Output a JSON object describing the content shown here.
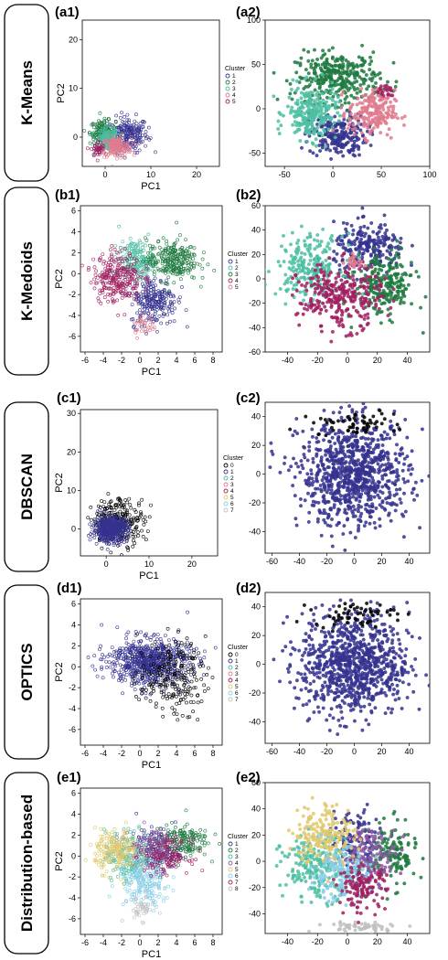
{
  "colors": {
    "navy": "#35338f",
    "green": "#1e7a40",
    "teal": "#4dbfa3",
    "pink": "#e07b8e",
    "maroon": "#a11f5f",
    "skyblue": "#87cde8",
    "yellow": "#e0c86b",
    "black": "#000000",
    "gray": "#c0c0c0",
    "purple": "#8a56a3"
  },
  "rows": [
    {
      "method": "K-Means",
      "left": {
        "label": "(a1)",
        "xlabel": "PC1",
        "ylabel": "PC2",
        "xticks": [
          0,
          10,
          20
        ],
        "yticks": [
          0,
          10,
          20
        ],
        "xlim": [
          -5,
          25
        ],
        "ylim": [
          -6,
          24
        ],
        "legend_title": "Cluster",
        "legend": [
          "1",
          "2",
          "3",
          "4",
          "5"
        ]
      },
      "right": {
        "label": "(a2)",
        "xticks": [
          -50,
          0,
          50,
          100
        ],
        "yticks": [
          -50,
          0,
          50,
          100
        ],
        "xlim": [
          -70,
          100
        ],
        "ylim": [
          -65,
          100
        ]
      }
    },
    {
      "method": "K-Medoids",
      "left": {
        "label": "(b1)",
        "xlabel": "PC1",
        "ylabel": "PC2",
        "xticks": [
          -6,
          -4,
          -2,
          0,
          2,
          4,
          6,
          8
        ],
        "yticks": [
          -6,
          -4,
          -2,
          0,
          2,
          4,
          6
        ],
        "xlim": [
          -6.5,
          9
        ],
        "ylim": [
          -7.5,
          6.5
        ],
        "legend_title": "Cluster",
        "legend": [
          "1",
          "2",
          "3",
          "4",
          "5"
        ]
      },
      "right": {
        "label": "(b2)",
        "xticks": [
          -40,
          -20,
          0,
          20,
          40
        ],
        "yticks": [
          -60,
          -40,
          -20,
          0,
          20,
          40,
          60
        ],
        "xlim": [
          -55,
          55
        ],
        "ylim": [
          -60,
          60
        ]
      }
    },
    {
      "method": "DBSCAN",
      "left": {
        "label": "(c1)",
        "xlabel": "PC1",
        "ylabel": "PC2",
        "xticks": [
          0,
          10,
          20
        ],
        "yticks": [
          0,
          10,
          20,
          30
        ],
        "xlim": [
          -6,
          26
        ],
        "ylim": [
          -7,
          31
        ],
        "legend_title": "Cluster",
        "legend": [
          "0",
          "1",
          "2",
          "3",
          "4",
          "5",
          "6",
          "7"
        ]
      },
      "right": {
        "label": "(c2)",
        "xticks": [
          -60,
          -40,
          -20,
          0,
          20,
          40
        ],
        "yticks": [
          -40,
          -20,
          0,
          20,
          40
        ],
        "xlim": [
          -65,
          55
        ],
        "ylim": [
          -55,
          50
        ]
      }
    },
    {
      "method": "OPTICS",
      "left": {
        "label": "(d1)",
        "xlabel": "PC1",
        "ylabel": "PC2",
        "xticks": [
          -6,
          -4,
          -2,
          0,
          2,
          4,
          6,
          8
        ],
        "yticks": [
          -6,
          -4,
          -2,
          0,
          2,
          4,
          6
        ],
        "xlim": [
          -6.5,
          9
        ],
        "ylim": [
          -7.5,
          6.5
        ],
        "legend_title": "Cluster",
        "legend": [
          "0",
          "1",
          "2",
          "3",
          "4",
          "5",
          "6",
          "7"
        ]
      },
      "right": {
        "label": "(d2)",
        "xticks": [
          -60,
          -40,
          -20,
          0,
          20,
          40
        ],
        "yticks": [
          -40,
          -20,
          0,
          20,
          40
        ],
        "xlim": [
          -65,
          55
        ],
        "ylim": [
          -55,
          50
        ]
      }
    },
    {
      "method": "Distribution-based",
      "left": {
        "label": "(e1)",
        "xlabel": "PC1",
        "ylabel": "PC2",
        "xticks": [
          -6,
          -4,
          -2,
          0,
          2,
          4,
          6,
          8
        ],
        "yticks": [
          -6,
          -4,
          -2,
          0,
          2,
          4,
          6
        ],
        "xlim": [
          -6.5,
          9
        ],
        "ylim": [
          -7.5,
          6.5
        ],
        "legend_title": "Cluster",
        "legend": [
          "1",
          "2",
          "3",
          "4",
          "5",
          "6",
          "7",
          "8"
        ]
      },
      "right": {
        "label": "(e2)",
        "xticks": [
          -40,
          -20,
          0,
          20,
          40
        ],
        "yticks": [
          -40,
          -20,
          0,
          20,
          40,
          60
        ],
        "xlim": [
          -55,
          55
        ],
        "ylim": [
          -55,
          60
        ]
      }
    }
  ],
  "chart_data": [
    {
      "type": "scatter",
      "id": "a1",
      "xlabel": "PC1",
      "ylabel": "PC2",
      "xlim": [
        -5,
        25
      ],
      "ylim": [
        -6,
        24
      ],
      "legend": [
        "1",
        "2",
        "3",
        "4",
        "5"
      ],
      "legend_title": "Cluster",
      "series": [
        {
          "name": "1",
          "color": "navy",
          "cx": 5,
          "cy": 0.5,
          "sx": 2.2,
          "sy": 1.8,
          "n": 220
        },
        {
          "name": "2",
          "color": "green",
          "cx": -0.5,
          "cy": 1,
          "sx": 1.4,
          "sy": 1.2,
          "n": 150
        },
        {
          "name": "3",
          "color": "teal",
          "cx": 0.5,
          "cy": -0.5,
          "sx": 1.2,
          "sy": 1.2,
          "n": 120
        },
        {
          "name": "4",
          "color": "pink",
          "cx": 2.5,
          "cy": -2,
          "sx": 1.6,
          "sy": 1,
          "n": 160
        },
        {
          "name": "5",
          "color": "maroon",
          "cx": -1.5,
          "cy": -2.5,
          "sx": 0.8,
          "sy": 0.8,
          "n": 40
        }
      ]
    },
    {
      "type": "scatter",
      "id": "a2",
      "xlim": [
        -70,
        100
      ],
      "ylim": [
        -65,
        100
      ],
      "series": [
        {
          "name": "1",
          "color": "navy",
          "cx": 5,
          "cy": -30,
          "sx": 15,
          "sy": 12,
          "n": 220
        },
        {
          "name": "2",
          "color": "green",
          "cx": 5,
          "cy": 35,
          "sx": 22,
          "sy": 14,
          "n": 330
        },
        {
          "name": "3",
          "color": "teal",
          "cx": -22,
          "cy": -5,
          "sx": 13,
          "sy": 15,
          "n": 240
        },
        {
          "name": "4",
          "color": "pink",
          "cx": 40,
          "cy": -5,
          "sx": 12,
          "sy": 13,
          "n": 210
        },
        {
          "name": "5",
          "color": "maroon",
          "cx": 55,
          "cy": 20,
          "sx": 5,
          "sy": 5,
          "n": 20
        }
      ]
    },
    {
      "type": "scatter",
      "id": "b1",
      "xlabel": "PC1",
      "ylabel": "PC2",
      "xlim": [
        -6.5,
        9
      ],
      "ylim": [
        -7.5,
        6.5
      ],
      "legend": [
        "1",
        "2",
        "3",
        "4",
        "5"
      ],
      "legend_title": "Cluster",
      "series": [
        {
          "name": "1",
          "color": "navy",
          "cx": 1.5,
          "cy": -2.5,
          "sx": 1.3,
          "sy": 1.2,
          "n": 240
        },
        {
          "name": "2",
          "color": "teal",
          "cx": -0.5,
          "cy": 1.3,
          "sx": 0.9,
          "sy": 0.9,
          "n": 180
        },
        {
          "name": "3",
          "color": "green",
          "cx": 3.5,
          "cy": 1.3,
          "sx": 1.4,
          "sy": 1,
          "n": 260
        },
        {
          "name": "4",
          "color": "maroon",
          "cx": -2.5,
          "cy": -0.3,
          "sx": 1.3,
          "sy": 1.2,
          "n": 260
        },
        {
          "name": "5",
          "color": "pink",
          "cx": 0.5,
          "cy": -5,
          "sx": 0.7,
          "sy": 0.5,
          "n": 30
        }
      ]
    },
    {
      "type": "scatter",
      "id": "b2",
      "xlim": [
        -55,
        55
      ],
      "ylim": [
        -60,
        60
      ],
      "series": [
        {
          "name": "1",
          "color": "navy",
          "cx": 15,
          "cy": 25,
          "sx": 12,
          "sy": 10,
          "n": 220
        },
        {
          "name": "2",
          "color": "teal",
          "cx": -25,
          "cy": 10,
          "sx": 11,
          "sy": 13,
          "n": 230
        },
        {
          "name": "3",
          "color": "green",
          "cx": 25,
          "cy": -5,
          "sx": 10,
          "sy": 13,
          "n": 230
        },
        {
          "name": "4",
          "color": "maroon",
          "cx": -5,
          "cy": -15,
          "sx": 14,
          "sy": 13,
          "n": 300
        },
        {
          "name": "5",
          "color": "pink",
          "cx": 5,
          "cy": 15,
          "sx": 3,
          "sy": 3,
          "n": 20
        }
      ]
    },
    {
      "type": "scatter",
      "id": "c1",
      "xlabel": "PC1",
      "ylabel": "PC2",
      "xlim": [
        -6,
        26
      ],
      "ylim": [
        -7,
        31
      ],
      "legend": [
        "0",
        "1",
        "2",
        "3",
        "4",
        "5",
        "6",
        "7"
      ],
      "legend_title": "Cluster",
      "series": [
        {
          "name": "0",
          "color": "black",
          "cx": 3,
          "cy": 2,
          "sx": 3,
          "sy": 3,
          "n": 260
        },
        {
          "name": "1",
          "color": "navy",
          "cx": 1,
          "cy": 0,
          "sx": 2,
          "sy": 1.6,
          "n": 450
        }
      ]
    },
    {
      "type": "scatter",
      "id": "c2",
      "xlim": [
        -65,
        55
      ],
      "ylim": [
        -55,
        50
      ],
      "series": [
        {
          "name": "1",
          "color": "navy",
          "cx": 0,
          "cy": 0,
          "sx": 20,
          "sy": 18,
          "n": 900
        },
        {
          "name": "0",
          "color": "black",
          "cx": 0,
          "cy": 35,
          "sx": 15,
          "sy": 4,
          "n": 60
        }
      ]
    },
    {
      "type": "scatter",
      "id": "d1",
      "xlabel": "PC1",
      "ylabel": "PC2",
      "xlim": [
        -6.5,
        9
      ],
      "ylim": [
        -7.5,
        6.5
      ],
      "legend": [
        "0",
        "1",
        "2",
        "3",
        "4",
        "5",
        "6",
        "7"
      ],
      "legend_title": "Cluster",
      "series": [
        {
          "name": "1",
          "color": "navy",
          "cx": 1,
          "cy": 0.5,
          "sx": 2.2,
          "sy": 1.1,
          "n": 700
        },
        {
          "name": "0",
          "color": "black",
          "cx": 3.5,
          "cy": -1,
          "sx": 1.8,
          "sy": 1.8,
          "n": 220
        }
      ]
    },
    {
      "type": "scatter",
      "id": "d2",
      "xlim": [
        -65,
        55
      ],
      "ylim": [
        -55,
        50
      ],
      "series": [
        {
          "name": "1",
          "color": "navy",
          "cx": 0,
          "cy": 0,
          "sx": 20,
          "sy": 18,
          "n": 900
        },
        {
          "name": "0",
          "color": "black",
          "cx": 0,
          "cy": 35,
          "sx": 15,
          "sy": 4,
          "n": 60
        }
      ]
    },
    {
      "type": "scatter",
      "id": "e1",
      "xlabel": "PC1",
      "ylabel": "PC2",
      "xlim": [
        -6.5,
        9
      ],
      "ylim": [
        -7.5,
        6.5
      ],
      "legend": [
        "1",
        "2",
        "3",
        "4",
        "5",
        "6",
        "7",
        "8"
      ],
      "legend_title": "Cluster",
      "series": [
        {
          "name": "1",
          "color": "navy",
          "cx": 2,
          "cy": 0.5,
          "sx": 1.2,
          "sy": 1,
          "n": 140
        },
        {
          "name": "2",
          "color": "green",
          "cx": 4.5,
          "cy": 1.5,
          "sx": 1.5,
          "sy": 0.8,
          "n": 160
        },
        {
          "name": "3",
          "color": "teal",
          "cx": -1,
          "cy": 0,
          "sx": 1.4,
          "sy": 1.2,
          "n": 200
        },
        {
          "name": "4",
          "color": "purple",
          "cx": 1,
          "cy": 1,
          "sx": 1.2,
          "sy": 0.9,
          "n": 120
        },
        {
          "name": "5",
          "color": "yellow",
          "cx": -2.5,
          "cy": 0.5,
          "sx": 1.2,
          "sy": 1,
          "n": 200
        },
        {
          "name": "6",
          "color": "skyblue",
          "cx": 0.5,
          "cy": -2.5,
          "sx": 1.4,
          "sy": 1.2,
          "n": 200
        },
        {
          "name": "7",
          "color": "maroon",
          "cx": 3,
          "cy": 0,
          "sx": 1.2,
          "sy": 0.8,
          "n": 120
        },
        {
          "name": "8",
          "color": "gray",
          "cx": 0,
          "cy": -5,
          "sx": 0.8,
          "sy": 0.6,
          "n": 40
        }
      ]
    },
    {
      "type": "scatter",
      "id": "e2",
      "xlim": [
        -55,
        55
      ],
      "ylim": [
        -55,
        60
      ],
      "series": [
        {
          "name": "1",
          "color": "navy",
          "cx": 5,
          "cy": 15,
          "sx": 8,
          "sy": 12,
          "n": 120
        },
        {
          "name": "2",
          "color": "green",
          "cx": 30,
          "cy": 5,
          "sx": 8,
          "sy": 12,
          "n": 140
        },
        {
          "name": "3",
          "color": "teal",
          "cx": -20,
          "cy": -5,
          "sx": 12,
          "sy": 12,
          "n": 220
        },
        {
          "name": "4",
          "color": "purple",
          "cx": 15,
          "cy": 5,
          "sx": 9,
          "sy": 10,
          "n": 140
        },
        {
          "name": "5",
          "color": "yellow",
          "cx": -15,
          "cy": 20,
          "sx": 10,
          "sy": 12,
          "n": 200
        },
        {
          "name": "6",
          "color": "skyblue",
          "cx": -5,
          "cy": -10,
          "sx": 10,
          "sy": 10,
          "n": 160
        },
        {
          "name": "7",
          "color": "maroon",
          "cx": 10,
          "cy": -20,
          "sx": 8,
          "sy": 8,
          "n": 120
        },
        {
          "name": "8",
          "color": "gray",
          "cx": 10,
          "cy": -50,
          "sx": 15,
          "sy": 2,
          "n": 60
        }
      ]
    }
  ]
}
